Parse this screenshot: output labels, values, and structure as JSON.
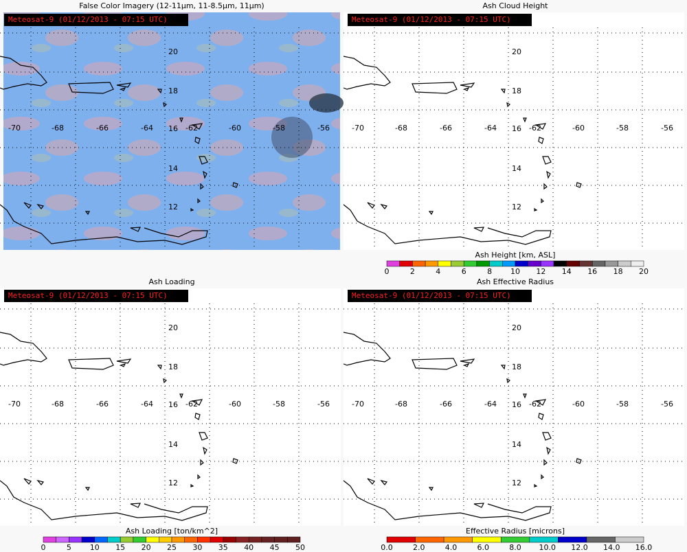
{
  "panels": [
    {
      "title": "False Color Imagery (12-11µm, 11-8.5µm, 11µm)",
      "stamp": "Meteosat-9  (01/12/2013 - 07:15 UTC)"
    },
    {
      "title": "Ash Cloud Height",
      "stamp": "Meteosat-9  (01/12/2013 - 07:15 UTC)",
      "colorbar": {
        "label": "Ash Height [km, ASL]",
        "ticks": [
          "0",
          "2",
          "4",
          "6",
          "8",
          "10",
          "12",
          "14",
          "16",
          "18",
          "20"
        ],
        "colors": [
          "#e040e0",
          "#e00000",
          "#ff6600",
          "#ff9900",
          "#ffff00",
          "#99cc33",
          "#33cc33",
          "#009900",
          "#00cccc",
          "#0099ff",
          "#0000cc",
          "#6600cc",
          "#9933ff",
          "#000000",
          "#660000",
          "#663333",
          "#666666",
          "#999999",
          "#cccccc",
          "#eeeeee"
        ]
      }
    },
    {
      "title": "Ash Loading",
      "stamp": "Meteosat-9  (01/12/2013 - 07:15 UTC)",
      "colorbar": {
        "label": "Ash Loading [ton/km^2]",
        "ticks": [
          "0",
          "5",
          "10",
          "15",
          "20",
          "25",
          "30",
          "35",
          "40",
          "45",
          "50"
        ],
        "colors": [
          "#e040e0",
          "#cc66ff",
          "#9933ff",
          "#0000cc",
          "#0066ff",
          "#00cccc",
          "#99cc33",
          "#33cc33",
          "#ffff00",
          "#ffcc00",
          "#ff9900",
          "#ff6600",
          "#ff3300",
          "#e00000",
          "#990000",
          "#882222",
          "#772222",
          "#662222",
          "#602020",
          "#602020"
        ]
      }
    },
    {
      "title": "Ash Effective Radius",
      "stamp": "Meteosat-9  (01/12/2013 - 07:15 UTC)",
      "colorbar": {
        "label": "Effective Radius [microns]",
        "ticks": [
          "0.0",
          "2.0",
          "4.0",
          "6.0",
          "8.0",
          "10.0",
          "12.0",
          "14.0",
          "16.0"
        ],
        "colors": [
          "#e00000",
          "#ff6600",
          "#ff9900",
          "#ffff00",
          "#33cc33",
          "#00cccc",
          "#0000cc",
          "#666666",
          "#cccccc"
        ]
      }
    }
  ],
  "lon_labels": [
    "-70",
    "-68",
    "-66",
    "-64",
    "-62",
    "-60",
    "-58",
    "-56"
  ],
  "lat_labels": [
    "20",
    "18",
    "16",
    "14",
    "12"
  ]
}
